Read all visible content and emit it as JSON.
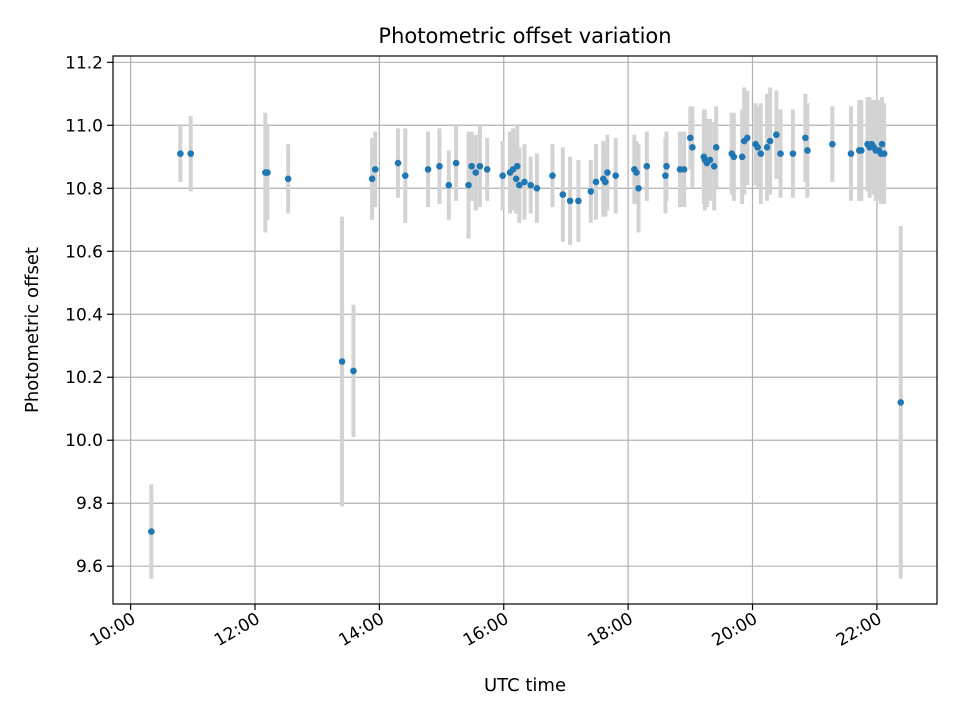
{
  "chart_data": {
    "type": "scatter",
    "title": "Photometric offset variation",
    "xlabel": "UTC time",
    "ylabel": "Photometric offset",
    "x_ticks": [
      "10:00",
      "12:00",
      "14:00",
      "16:00",
      "18:00",
      "20:00",
      "22:00"
    ],
    "y_ticks": [
      "9.6",
      "9.8",
      "10.0",
      "10.2",
      "10.4",
      "10.6",
      "10.8",
      "11.0",
      "11.2"
    ],
    "xlim": [
      "09:43",
      "22:58"
    ],
    "ylim": [
      9.48,
      11.22
    ],
    "grid": true,
    "colors": {
      "point": "#1f77b4",
      "errorbar": "#d3d3d3",
      "grid": "#b0b0b0"
    },
    "series": [
      {
        "x": [
          "10:20",
          "10:48",
          "10:58",
          "12:10",
          "12:12",
          "12:32",
          "13:24",
          "13:35",
          "13:53",
          "13:56",
          "14:18",
          "14:25",
          "14:47",
          "14:58",
          "15:07",
          "15:14",
          "15:26",
          "15:29",
          "15:33",
          "15:37",
          "15:44",
          "15:59",
          "16:06",
          "16:09",
          "16:12",
          "16:13",
          "16:15",
          "16:20",
          "16:26",
          "16:32",
          "16:47",
          "16:57",
          "17:04",
          "17:12",
          "17:24",
          "17:29",
          "17:36",
          "17:38",
          "17:40",
          "17:48",
          "18:06",
          "18:08",
          "18:10",
          "18:18",
          "18:36",
          "18:37",
          "18:50",
          "18:54",
          "19:00",
          "19:02",
          "19:13",
          "19:14",
          "19:16",
          "19:19",
          "19:23",
          "19:25",
          "19:40",
          "19:42",
          "19:50",
          "19:52",
          "19:55",
          "20:03",
          "20:05",
          "20:08",
          "20:14",
          "20:17",
          "20:23",
          "20:27",
          "20:39",
          "20:51",
          "20:53",
          "21:17",
          "21:35",
          "21:43",
          "21:45",
          "21:51",
          "21:53",
          "21:55",
          "21:57",
          "21:59",
          "22:02",
          "22:04",
          "22:05",
          "22:07",
          "22:23"
        ],
        "y": [
          9.71,
          10.91,
          10.91,
          10.85,
          10.85,
          10.83,
          10.25,
          10.22,
          10.83,
          10.86,
          10.88,
          10.84,
          10.86,
          10.87,
          10.81,
          10.88,
          10.81,
          10.87,
          10.85,
          10.87,
          10.86,
          10.84,
          10.85,
          10.86,
          10.83,
          10.87,
          10.81,
          10.82,
          10.81,
          10.8,
          10.84,
          10.78,
          10.76,
          10.76,
          10.79,
          10.82,
          10.83,
          10.82,
          10.85,
          10.84,
          10.86,
          10.85,
          10.8,
          10.87,
          10.84,
          10.87,
          10.86,
          10.86,
          10.96,
          10.93,
          10.9,
          10.89,
          10.88,
          10.89,
          10.87,
          10.93,
          10.91,
          10.9,
          10.9,
          10.95,
          10.96,
          10.94,
          10.93,
          10.91,
          10.93,
          10.95,
          10.97,
          10.91,
          10.91,
          10.96,
          10.92,
          10.94,
          10.91,
          10.92,
          10.92,
          10.94,
          10.93,
          10.94,
          10.93,
          10.92,
          10.92,
          10.91,
          10.94,
          10.91,
          10.12
        ],
        "err": [
          0.15,
          0.09,
          0.12,
          0.19,
          0.15,
          0.11,
          0.46,
          0.21,
          0.13,
          0.12,
          0.11,
          0.15,
          0.12,
          0.12,
          0.11,
          0.12,
          0.17,
          0.11,
          0.12,
          0.13,
          0.1,
          0.11,
          0.13,
          0.13,
          0.11,
          0.13,
          0.12,
          0.12,
          0.09,
          0.11,
          0.1,
          0.15,
          0.14,
          0.13,
          0.1,
          0.12,
          0.12,
          0.11,
          0.12,
          0.12,
          0.11,
          0.1,
          0.14,
          0.11,
          0.12,
          0.11,
          0.12,
          0.12,
          0.1,
          0.13,
          0.15,
          0.16,
          0.14,
          0.13,
          0.14,
          0.13,
          0.13,
          0.14,
          0.15,
          0.17,
          0.15,
          0.13,
          0.13,
          0.16,
          0.17,
          0.17,
          0.14,
          0.14,
          0.14,
          0.14,
          0.15,
          0.12,
          0.15,
          0.16,
          0.16,
          0.15,
          0.16,
          0.14,
          0.15,
          0.16,
          0.16,
          0.16,
          0.15,
          0.16,
          0.56
        ]
      }
    ]
  }
}
